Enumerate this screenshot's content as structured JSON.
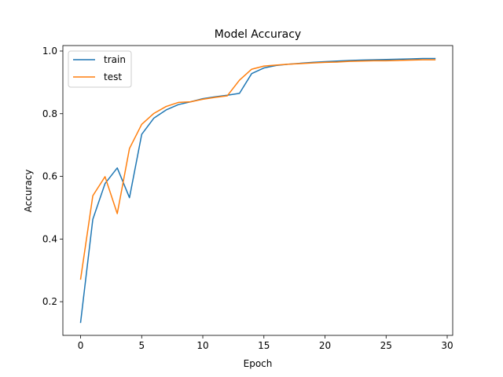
{
  "chart_data": {
    "type": "line",
    "title": "Model Accuracy",
    "xlabel": "Epoch",
    "ylabel": "Accuracy",
    "xlim": [
      -1.45,
      30.45
    ],
    "ylim": [
      0.0925,
      1.0175
    ],
    "xticks": [
      0,
      5,
      10,
      15,
      20,
      25,
      30
    ],
    "xtick_labels": [
      "0",
      "5",
      "10",
      "15",
      "20",
      "25",
      "30"
    ],
    "yticks": [
      0.2,
      0.4,
      0.6,
      0.8,
      1.0
    ],
    "ytick_labels": [
      "0.2",
      "0.4",
      "0.6",
      "0.8",
      "1.0"
    ],
    "grid": false,
    "legend_position": "upper-left",
    "x": [
      0,
      1,
      2,
      3,
      4,
      5,
      6,
      7,
      8,
      9,
      10,
      11,
      12,
      13,
      14,
      15,
      16,
      17,
      18,
      19,
      20,
      21,
      22,
      23,
      24,
      25,
      26,
      27,
      28,
      29
    ],
    "series": [
      {
        "name": "train",
        "color": "#1f77b4",
        "values": [
          0.134,
          0.463,
          0.577,
          0.627,
          0.532,
          0.734,
          0.786,
          0.812,
          0.829,
          0.838,
          0.848,
          0.854,
          0.859,
          0.865,
          0.928,
          0.946,
          0.954,
          0.958,
          0.961,
          0.964,
          0.966,
          0.968,
          0.97,
          0.971,
          0.972,
          0.973,
          0.974,
          0.975,
          0.976,
          0.976
        ]
      },
      {
        "name": "test",
        "color": "#ff7f0e",
        "values": [
          0.272,
          0.538,
          0.599,
          0.481,
          0.689,
          0.766,
          0.801,
          0.823,
          0.836,
          0.838,
          0.846,
          0.852,
          0.857,
          0.907,
          0.942,
          0.952,
          0.955,
          0.958,
          0.96,
          0.962,
          0.964,
          0.965,
          0.967,
          0.968,
          0.969,
          0.969,
          0.97,
          0.971,
          0.972,
          0.972
        ]
      }
    ]
  }
}
